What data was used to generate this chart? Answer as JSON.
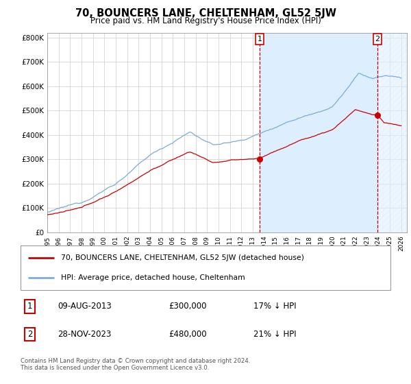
{
  "title": "70, BOUNCERS LANE, CHELTENHAM, GL52 5JW",
  "subtitle": "Price paid vs. HM Land Registry's House Price Index (HPI)",
  "title_fontsize": 10.5,
  "subtitle_fontsize": 8.5,
  "ylim": [
    0,
    820000
  ],
  "yticks": [
    0,
    100000,
    200000,
    300000,
    400000,
    500000,
    600000,
    700000,
    800000
  ],
  "ytick_labels": [
    "£0",
    "£100K",
    "£200K",
    "£300K",
    "£400K",
    "£500K",
    "£600K",
    "£700K",
    "£800K"
  ],
  "xlim_start": 1995.0,
  "xlim_end": 2026.5,
  "red_line_color": "#cc0000",
  "blue_line_color": "#7aabdc",
  "shade_color": "#ddeeff",
  "vline_color": "#cc0000",
  "vline1_x": 2013.6,
  "vline2_x": 2023.92,
  "sale1_y": 300000,
  "sale2_y": 480000,
  "legend_entries": [
    "70, BOUNCERS LANE, CHELTENHAM, GL52 5JW (detached house)",
    "HPI: Average price, detached house, Cheltenham"
  ],
  "table_rows": [
    {
      "num": "1",
      "date": "09-AUG-2013",
      "price": "£300,000",
      "hpi": "17% ↓ HPI"
    },
    {
      "num": "2",
      "date": "28-NOV-2023",
      "price": "£480,000",
      "hpi": "21% ↓ HPI"
    }
  ],
  "footer": "Contains HM Land Registry data © Crown copyright and database right 2024.\nThis data is licensed under the Open Government Licence v3.0.",
  "background_color": "#ffffff",
  "grid_color": "#cccccc"
}
